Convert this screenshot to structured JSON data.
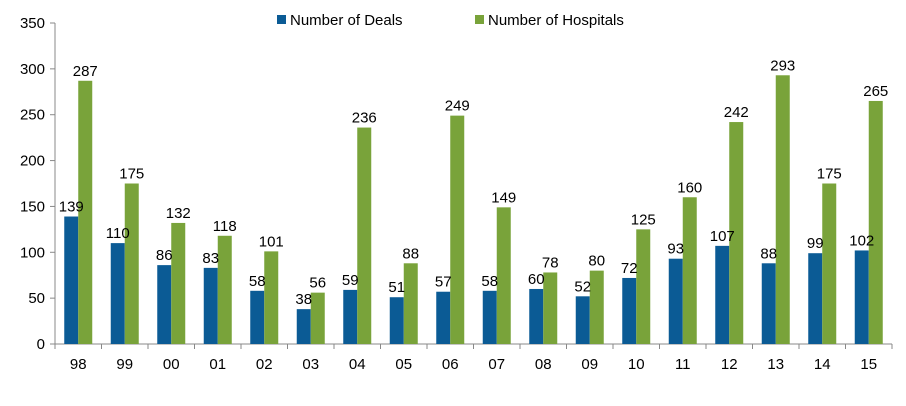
{
  "chart_data": {
    "type": "bar",
    "title": "",
    "xlabel": "",
    "ylabel": "",
    "categories": [
      "98",
      "99",
      "00",
      "01",
      "02",
      "03",
      "04",
      "05",
      "06",
      "07",
      "08",
      "09",
      "10",
      "11",
      "12",
      "13",
      "14",
      "15"
    ],
    "series": [
      {
        "name": "Number of Deals",
        "color": "#0b5b95",
        "values": [
          139,
          110,
          86,
          83,
          58,
          38,
          59,
          51,
          57,
          58,
          60,
          52,
          72,
          93,
          107,
          88,
          99,
          102
        ]
      },
      {
        "name": "Number of Hospitals",
        "color": "#79a33a",
        "values": [
          287,
          175,
          132,
          118,
          101,
          56,
          236,
          88,
          249,
          149,
          78,
          80,
          125,
          160,
          242,
          293,
          175,
          265
        ]
      }
    ],
    "ylim": [
      0,
      350
    ],
    "yticks": [
      "0",
      "50",
      "100",
      "150",
      "200",
      "250",
      "300",
      "350"
    ],
    "grid": false,
    "legend_position": "top"
  }
}
